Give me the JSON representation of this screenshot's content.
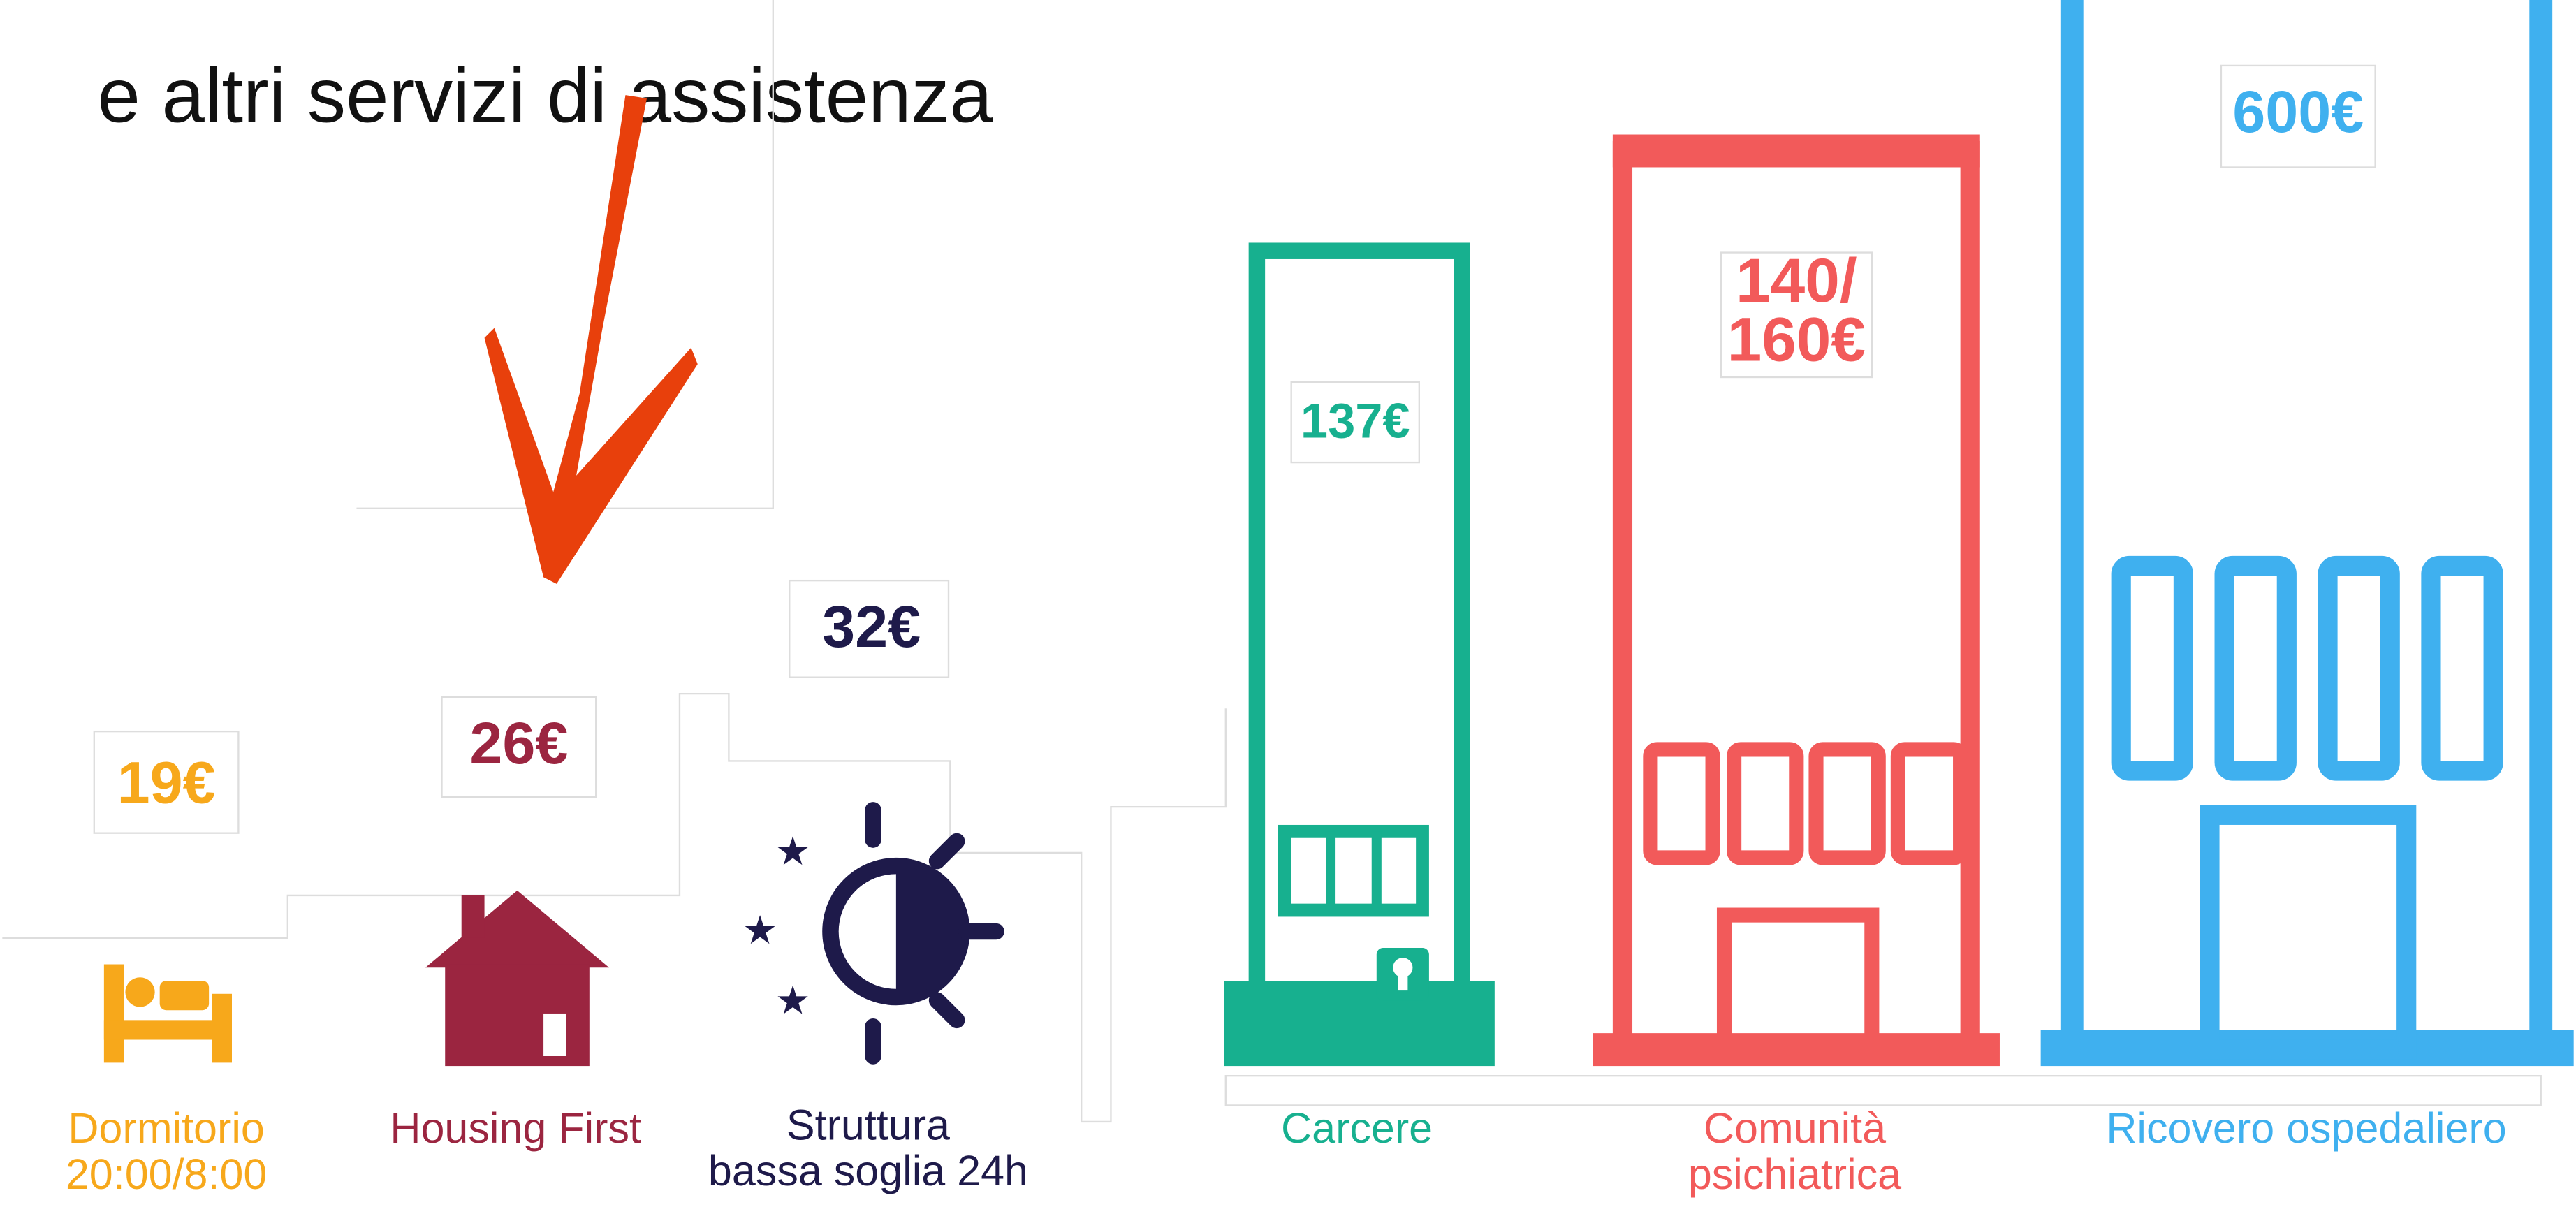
{
  "heading": "e altri servizi di assistenza",
  "items": [
    {
      "price": [
        "19€"
      ],
      "label": [
        "Dormitorio",
        "20:00/8:00"
      ]
    },
    {
      "price": [
        "26€"
      ],
      "label": [
        "Housing First"
      ]
    },
    {
      "price": [
        "32€"
      ],
      "label": [
        "Struttura",
        "bassa soglia 24h"
      ]
    },
    {
      "price": [
        "137€"
      ],
      "label": [
        "Carcere"
      ]
    },
    {
      "price": [
        "140/",
        "160€"
      ],
      "label": [
        "Comunità",
        "psichiatrica"
      ]
    },
    {
      "price": [
        "600€"
      ],
      "label": [
        "Ricovero ospedaliero"
      ]
    }
  ]
}
